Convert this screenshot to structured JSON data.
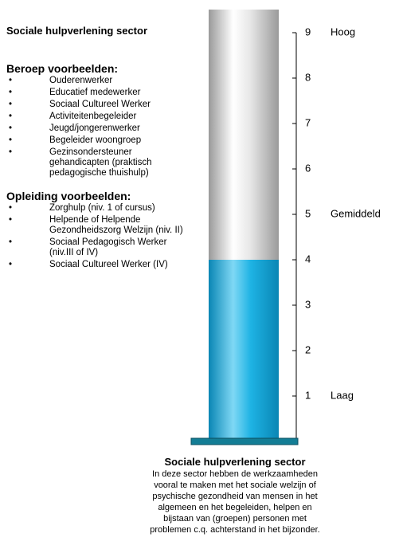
{
  "title": "Sociale hulpverlening sector",
  "sections": [
    {
      "heading": "Beroep voorbeelden:",
      "items": [
        "Ouderenwerker",
        "Educatief medewerker",
        "Sociaal Cultureel Werker",
        "Activiteitenbegeleider",
        "Jeugd/jongerenwerker",
        "Begeleider woongroep",
        "Gezinsondersteuner gehandicapten (praktisch pedagogische thuishulp)"
      ]
    },
    {
      "heading": "Opleiding voorbeelden:",
      "items": [
        "Zorghulp (niv. 1 of cursus)",
        "Helpende of Helpende Gezondheidszorg Welzijn (niv. II)",
        "Sociaal  Pedagogisch Werker (niv.III of IV)",
        "Sociaal Cultureel Werker (IV)"
      ]
    }
  ],
  "chart_data": {
    "type": "bar",
    "values": [
      4
    ],
    "color": "#1aa6d6",
    "ylim": [
      0,
      9
    ],
    "yticks": [
      1,
      2,
      3,
      4,
      5,
      6,
      7,
      8,
      9
    ],
    "level_labels": [
      {
        "value": 9,
        "label": "Hoog"
      },
      {
        "value": 5,
        "label": "Gemiddeld"
      },
      {
        "value": 1,
        "label": "Laag"
      }
    ]
  },
  "caption": {
    "title": "Sociale hulpverlening sector",
    "lines": [
      "In deze sector hebben de werkzaamheden",
      "vooral te maken met het sociale welzijn of",
      "psychische gezondheid van mensen in het",
      "algemeen en het begeleiden, helpen en",
      "bijstaan van (groepen) personen met",
      "problemen c.q. achterstand in het bijzonder."
    ]
  }
}
